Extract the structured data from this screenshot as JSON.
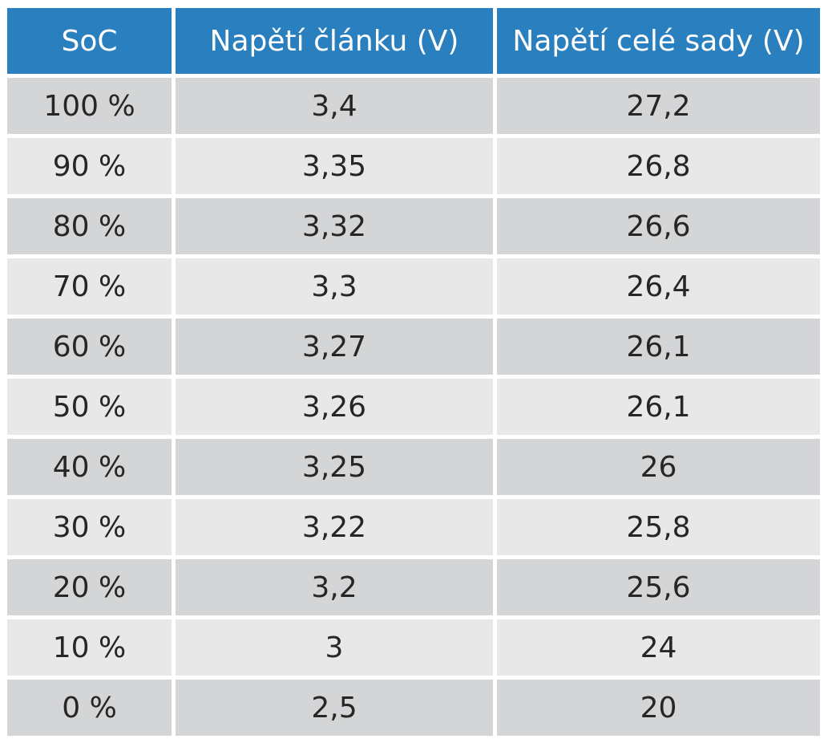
{
  "chart_data": {
    "type": "table",
    "columns": [
      "SoC",
      "Napětí článku (V)",
      "Napětí celé sady (V)"
    ],
    "rows": [
      [
        "100 %",
        "3,4",
        "27,2"
      ],
      [
        "90 %",
        "3,35",
        "26,8"
      ],
      [
        "80 %",
        "3,32",
        "26,6"
      ],
      [
        "70 %",
        "3,3",
        "26,4"
      ],
      [
        "60 %",
        "3,27",
        "26,1"
      ],
      [
        "50 %",
        "3,26",
        "26,1"
      ],
      [
        "40 %",
        "3,25",
        "26"
      ],
      [
        "30 %",
        "3,22",
        "25,8"
      ],
      [
        "20 %",
        "3,2",
        "25,6"
      ],
      [
        "10 %",
        "3",
        "24"
      ],
      [
        "0 %",
        "2,5",
        "20"
      ]
    ]
  },
  "colors": {
    "header_bg": "#2a7fbe",
    "row_dark": "#d4d5d7",
    "row_light": "#e8e8e9"
  }
}
